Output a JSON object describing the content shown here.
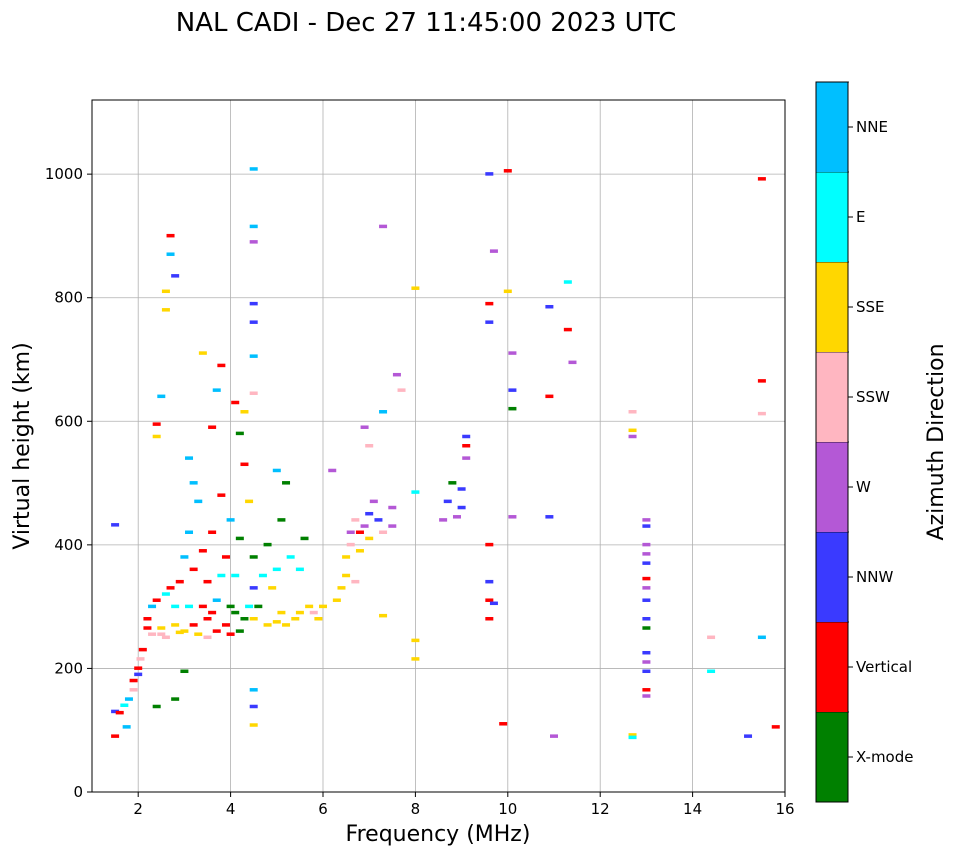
{
  "chart_data": {
    "type": "scatter",
    "title": "NAL CADI - Dec 27 11:45:00 2023 UTC",
    "xlabel": "Frequency (MHz)",
    "ylabel": "Virtual height (km)",
    "xlim": [
      1,
      16
    ],
    "ylim": [
      0,
      1120
    ],
    "xticks": [
      2,
      4,
      6,
      8,
      10,
      12,
      14,
      16
    ],
    "yticks": [
      0,
      200,
      400,
      600,
      800,
      1000
    ],
    "grid": true,
    "colorbar": {
      "label": "Azimuth Direction",
      "categories": [
        {
          "name": "X-mode",
          "color": "#008000"
        },
        {
          "name": "Vertical",
          "color": "#ff0000"
        },
        {
          "name": "NNW",
          "color": "#3a3aff"
        },
        {
          "name": "W",
          "color": "#b458d6"
        },
        {
          "name": "SSW",
          "color": "#ffb6c1"
        },
        {
          "name": "SSE",
          "color": "#ffd700"
        },
        {
          "name": "E",
          "color": "#00ffff"
        },
        {
          "name": "NNE",
          "color": "#00bfff"
        }
      ]
    },
    "points": [
      [
        1.5,
        130,
        "NNW"
      ],
      [
        1.6,
        128,
        "Vertical"
      ],
      [
        1.7,
        140,
        "E"
      ],
      [
        1.8,
        150,
        "NNE"
      ],
      [
        1.9,
        165,
        "SSW"
      ],
      [
        1.9,
        180,
        "Vertical"
      ],
      [
        2.0,
        190,
        "NNW"
      ],
      [
        2.0,
        200,
        "Vertical"
      ],
      [
        2.05,
        215,
        "SSW"
      ],
      [
        2.1,
        230,
        "Vertical"
      ],
      [
        1.75,
        105,
        "NNE"
      ],
      [
        1.5,
        90,
        "Vertical"
      ],
      [
        1.5,
        432,
        "NNW"
      ],
      [
        2.2,
        280,
        "Vertical"
      ],
      [
        2.3,
        300,
        "NNE"
      ],
      [
        2.4,
        310,
        "Vertical"
      ],
      [
        2.5,
        255,
        "SSW"
      ],
      [
        2.5,
        265,
        "SSE"
      ],
      [
        2.6,
        250,
        "SSW"
      ],
      [
        2.6,
        320,
        "E"
      ],
      [
        2.7,
        330,
        "Vertical"
      ],
      [
        2.8,
        270,
        "SSE"
      ],
      [
        2.8,
        300,
        "E"
      ],
      [
        2.9,
        258,
        "SSE"
      ],
      [
        2.9,
        340,
        "Vertical"
      ],
      [
        3.0,
        260,
        "SSE"
      ],
      [
        3.0,
        380,
        "NNE"
      ],
      [
        3.1,
        300,
        "E"
      ],
      [
        3.1,
        420,
        "NNE"
      ],
      [
        3.2,
        270,
        "Vertical"
      ],
      [
        3.2,
        360,
        "Vertical"
      ],
      [
        3.3,
        255,
        "SSE"
      ],
      [
        3.3,
        470,
        "NNE"
      ],
      [
        3.1,
        540,
        "NNE"
      ],
      [
        3.2,
        500,
        "NNE"
      ],
      [
        3.4,
        300,
        "Vertical"
      ],
      [
        3.4,
        390,
        "Vertical"
      ],
      [
        3.5,
        250,
        "SSW"
      ],
      [
        3.5,
        280,
        "Vertical"
      ],
      [
        3.5,
        340,
        "Vertical"
      ],
      [
        3.6,
        290,
        "Vertical"
      ],
      [
        3.6,
        420,
        "Vertical"
      ],
      [
        3.7,
        260,
        "Vertical"
      ],
      [
        3.7,
        310,
        "NNE"
      ],
      [
        3.8,
        350,
        "E"
      ],
      [
        3.8,
        480,
        "Vertical"
      ],
      [
        3.6,
        590,
        "Vertical"
      ],
      [
        3.7,
        650,
        "NNE"
      ],
      [
        3.8,
        690,
        "Vertical"
      ],
      [
        3.4,
        710,
        "SSE"
      ],
      [
        3.9,
        270,
        "Vertical"
      ],
      [
        3.9,
        380,
        "Vertical"
      ],
      [
        4.0,
        255,
        "Vertical"
      ],
      [
        4.0,
        300,
        "X-mode"
      ],
      [
        4.0,
        440,
        "NNE"
      ],
      [
        4.1,
        290,
        "X-mode"
      ],
      [
        4.1,
        350,
        "E"
      ],
      [
        4.2,
        260,
        "X-mode"
      ],
      [
        4.2,
        410,
        "X-mode"
      ],
      [
        4.3,
        280,
        "X-mode"
      ],
      [
        4.3,
        530,
        "Vertical"
      ],
      [
        4.4,
        300,
        "E"
      ],
      [
        4.4,
        470,
        "SSE"
      ],
      [
        4.5,
        330,
        "NNW"
      ],
      [
        4.5,
        380,
        "X-mode"
      ],
      [
        4.2,
        580,
        "X-mode"
      ],
      [
        4.3,
        615,
        "SSE"
      ],
      [
        4.1,
        630,
        "Vertical"
      ],
      [
        4.5,
        280,
        "SSE"
      ],
      [
        4.6,
        300,
        "X-mode"
      ],
      [
        4.7,
        350,
        "E"
      ],
      [
        4.8,
        270,
        "SSE"
      ],
      [
        4.8,
        400,
        "X-mode"
      ],
      [
        4.9,
        330,
        "SSE"
      ],
      [
        5.0,
        275,
        "SSE"
      ],
      [
        5.0,
        360,
        "E"
      ],
      [
        5.1,
        290,
        "SSE"
      ],
      [
        5.1,
        440,
        "X-mode"
      ],
      [
        5.2,
        270,
        "SSE"
      ],
      [
        5.3,
        380,
        "E"
      ],
      [
        5.4,
        280,
        "SSE"
      ],
      [
        5.5,
        290,
        "SSE"
      ],
      [
        5.5,
        360,
        "E"
      ],
      [
        5.6,
        410,
        "X-mode"
      ],
      [
        5.7,
        300,
        "SSE"
      ],
      [
        5.8,
        290,
        "SSW"
      ],
      [
        5.9,
        280,
        "SSE"
      ],
      [
        6.0,
        300,
        "SSE"
      ],
      [
        5.2,
        500,
        "X-mode"
      ],
      [
        5.0,
        520,
        "NNE"
      ],
      [
        6.2,
        520,
        "W"
      ],
      [
        6.3,
        310,
        "SSE"
      ],
      [
        6.4,
        330,
        "SSE"
      ],
      [
        6.5,
        350,
        "SSE"
      ],
      [
        6.5,
        380,
        "SSE"
      ],
      [
        6.6,
        400,
        "SSW"
      ],
      [
        6.6,
        420,
        "W"
      ],
      [
        6.7,
        340,
        "SSW"
      ],
      [
        6.7,
        440,
        "SSW"
      ],
      [
        6.8,
        390,
        "SSE"
      ],
      [
        6.8,
        420,
        "Vertical"
      ],
      [
        6.9,
        430,
        "W"
      ],
      [
        7.0,
        450,
        "NNW"
      ],
      [
        7.0,
        410,
        "SSE"
      ],
      [
        7.1,
        470,
        "W"
      ],
      [
        7.2,
        440,
        "NNW"
      ],
      [
        7.3,
        420,
        "SSW"
      ],
      [
        7.5,
        430,
        "W"
      ],
      [
        7.5,
        460,
        "W"
      ],
      [
        7.3,
        285,
        "SSE"
      ],
      [
        6.9,
        590,
        "W"
      ],
      [
        7.0,
        560,
        "SSW"
      ],
      [
        7.6,
        675,
        "W"
      ],
      [
        7.7,
        650,
        "SSW"
      ],
      [
        8.6,
        440,
        "W"
      ],
      [
        8.7,
        470,
        "NNW"
      ],
      [
        8.8,
        500,
        "X-mode"
      ],
      [
        8.9,
        445,
        "W"
      ],
      [
        9.0,
        460,
        "NNW"
      ],
      [
        9.0,
        490,
        "NNW"
      ],
      [
        9.1,
        540,
        "W"
      ],
      [
        9.1,
        560,
        "Vertical"
      ],
      [
        9.1,
        575,
        "NNW"
      ],
      [
        8.0,
        815,
        "SSE"
      ],
      [
        8.0,
        485,
        "E"
      ],
      [
        8.0,
        245,
        "SSE"
      ],
      [
        8.0,
        215,
        "SSE"
      ],
      [
        9.6,
        1000,
        "NNW"
      ],
      [
        9.6,
        790,
        "Vertical"
      ],
      [
        9.6,
        760,
        "NNW"
      ],
      [
        9.7,
        875,
        "W"
      ],
      [
        9.6,
        400,
        "Vertical"
      ],
      [
        9.6,
        340,
        "NNW"
      ],
      [
        9.6,
        310,
        "Vertical"
      ],
      [
        9.7,
        305,
        "NNW"
      ],
      [
        9.6,
        280,
        "Vertical"
      ],
      [
        9.9,
        110,
        "Vertical"
      ],
      [
        10.0,
        1005,
        "Vertical"
      ],
      [
        10.0,
        810,
        "SSE"
      ],
      [
        10.1,
        710,
        "W"
      ],
      [
        10.1,
        650,
        "NNW"
      ],
      [
        10.1,
        620,
        "X-mode"
      ],
      [
        10.1,
        445,
        "W"
      ],
      [
        10.9,
        785,
        "NNW"
      ],
      [
        10.9,
        640,
        "Vertical"
      ],
      [
        10.9,
        445,
        "NNW"
      ],
      [
        11.0,
        90,
        "W"
      ],
      [
        11.3,
        825,
        "E"
      ],
      [
        11.3,
        748,
        "Vertical"
      ],
      [
        11.4,
        695,
        "W"
      ],
      [
        7.3,
        615,
        "NNE"
      ],
      [
        7.3,
        915,
        "W"
      ],
      [
        12.7,
        615,
        "SSW"
      ],
      [
        12.7,
        585,
        "SSE"
      ],
      [
        12.7,
        575,
        "W"
      ],
      [
        12.7,
        92,
        "SSE"
      ],
      [
        12.7,
        88,
        "E"
      ],
      [
        13.0,
        440,
        "W"
      ],
      [
        13.0,
        430,
        "NNW"
      ],
      [
        13.0,
        400,
        "W"
      ],
      [
        13.0,
        385,
        "W"
      ],
      [
        13.0,
        370,
        "NNW"
      ],
      [
        13.0,
        345,
        "Vertical"
      ],
      [
        13.0,
        330,
        "W"
      ],
      [
        13.0,
        310,
        "NNW"
      ],
      [
        13.0,
        280,
        "NNW"
      ],
      [
        13.0,
        265,
        "X-mode"
      ],
      [
        13.0,
        225,
        "NNW"
      ],
      [
        13.0,
        210,
        "W"
      ],
      [
        13.0,
        195,
        "NNW"
      ],
      [
        13.0,
        165,
        "Vertical"
      ],
      [
        13.0,
        155,
        "W"
      ],
      [
        14.4,
        250,
        "SSW"
      ],
      [
        14.4,
        195,
        "E"
      ],
      [
        15.2,
        90,
        "NNW"
      ],
      [
        15.5,
        992,
        "Vertical"
      ],
      [
        15.5,
        665,
        "Vertical"
      ],
      [
        15.5,
        612,
        "SSW"
      ],
      [
        15.5,
        250,
        "NNE"
      ],
      [
        15.8,
        105,
        "Vertical"
      ],
      [
        2.4,
        575,
        "SSE"
      ],
      [
        2.4,
        595,
        "Vertical"
      ],
      [
        2.5,
        640,
        "NNE"
      ],
      [
        2.7,
        870,
        "NNE"
      ],
      [
        2.8,
        835,
        "NNW"
      ],
      [
        2.7,
        900,
        "Vertical"
      ],
      [
        2.6,
        810,
        "SSE"
      ],
      [
        2.6,
        780,
        "SSE"
      ],
      [
        4.5,
        1008,
        "NNE"
      ],
      [
        4.5,
        915,
        "NNE"
      ],
      [
        4.5,
        890,
        "W"
      ],
      [
        4.5,
        790,
        "NNW"
      ],
      [
        4.5,
        760,
        "NNW"
      ],
      [
        4.5,
        705,
        "NNE"
      ],
      [
        4.5,
        645,
        "SSW"
      ],
      [
        4.5,
        165,
        "NNE"
      ],
      [
        4.5,
        138,
        "NNW"
      ],
      [
        4.5,
        108,
        "SSE"
      ],
      [
        2.4,
        138,
        "X-mode"
      ],
      [
        2.8,
        150,
        "X-mode"
      ],
      [
        3.0,
        195,
        "X-mode"
      ],
      [
        2.3,
        255,
        "SSW"
      ],
      [
        2.2,
        265,
        "Vertical"
      ]
    ]
  }
}
